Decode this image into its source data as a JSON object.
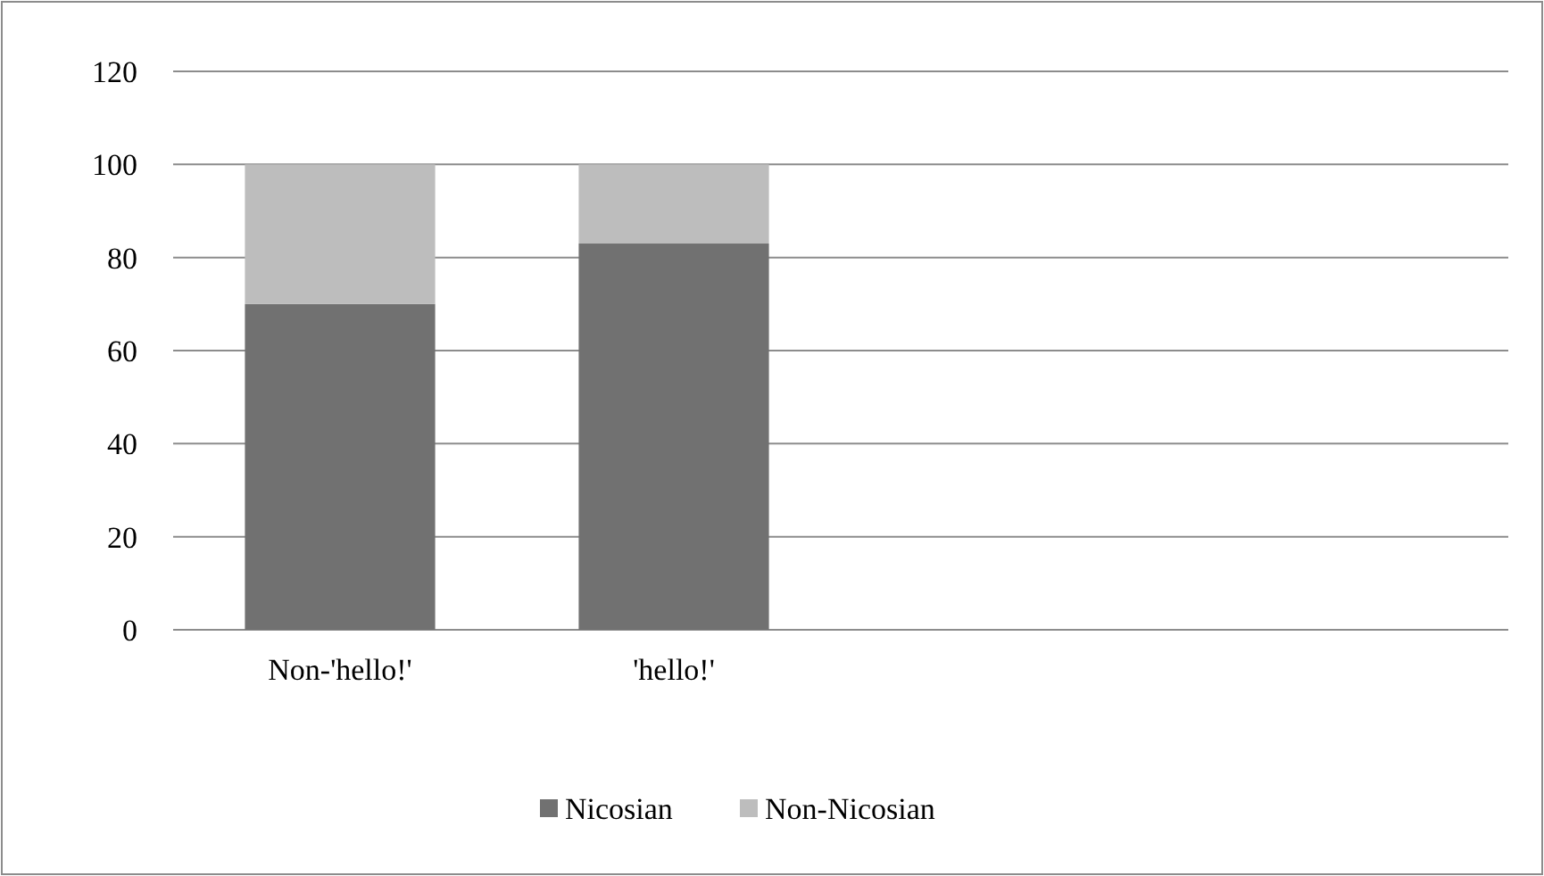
{
  "chart_data": {
    "type": "bar",
    "stacked": true,
    "categories": [
      "Non-'hello!'",
      "'hello!'",
      null,
      null
    ],
    "series": [
      {
        "name": "Nicosian",
        "color": "#717171",
        "values": [
          70,
          83,
          null,
          null
        ]
      },
      {
        "name": "Non-Nicosian",
        "color": "#bdbdbd",
        "values": [
          30,
          17,
          null,
          null
        ]
      }
    ],
    "ylim": [
      0,
      120
    ],
    "yticks": [
      0,
      20,
      40,
      60,
      80,
      100,
      120
    ],
    "grid": "y",
    "legend": "bottom"
  }
}
